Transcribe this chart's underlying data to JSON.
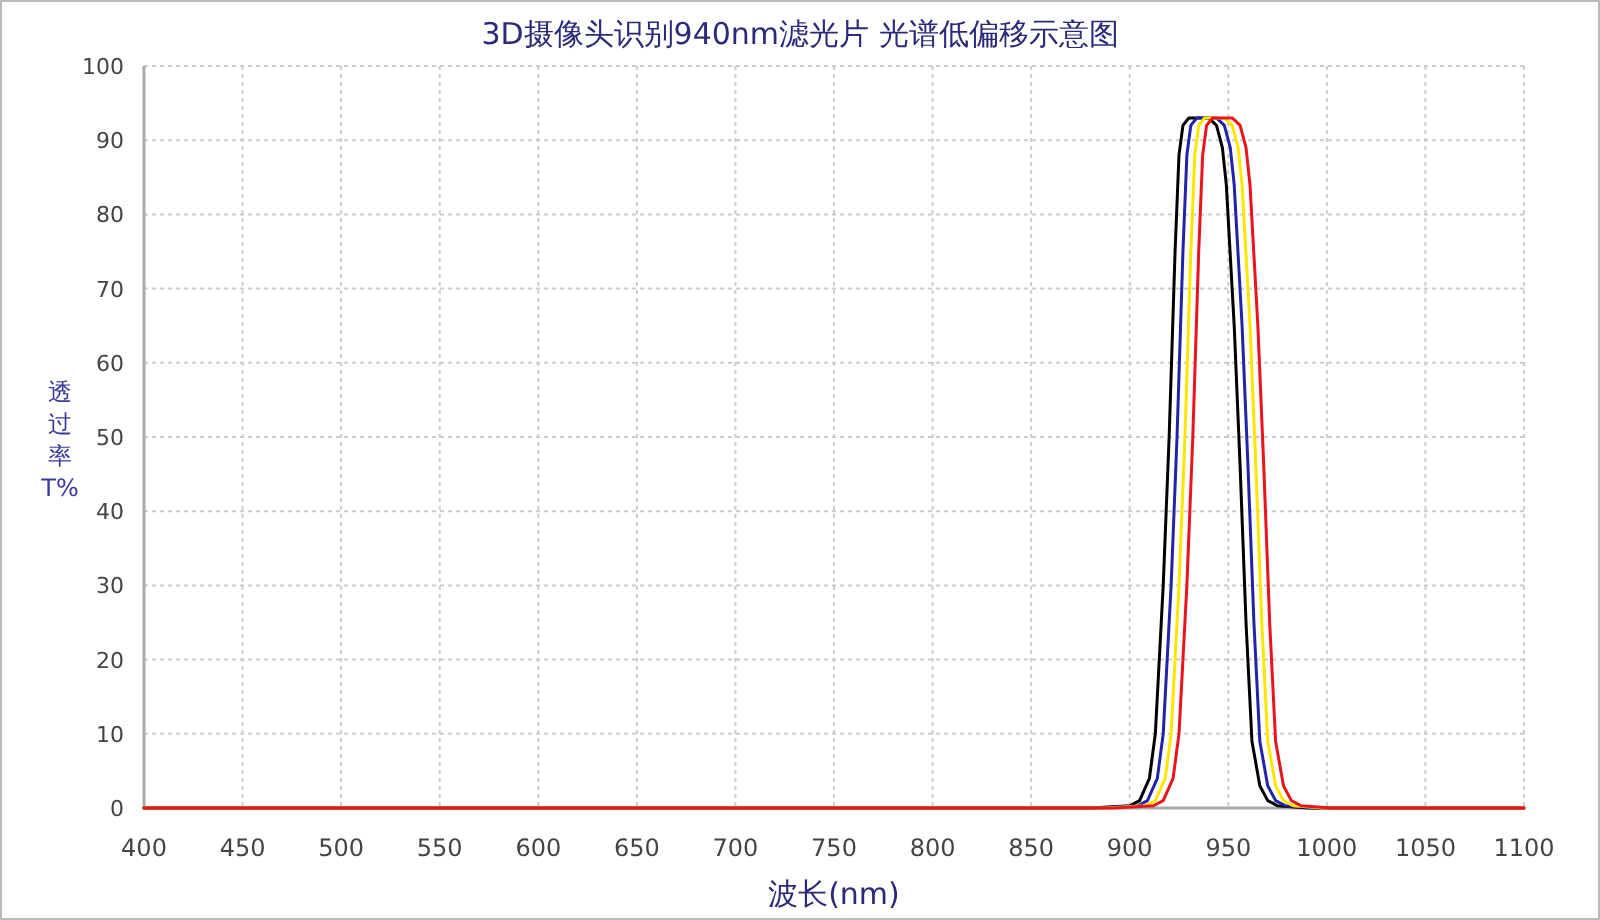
{
  "chart_data": {
    "type": "line",
    "title": "3D摄像头识别940nm滤光片 光谱低偏移示意图",
    "xlabel": "波长(nm)",
    "ylabel": "透过率T%",
    "xlim": [
      400,
      1100
    ],
    "xticks": [
      400,
      450,
      500,
      550,
      600,
      650,
      700,
      750,
      800,
      850,
      900,
      950,
      1000,
      1050,
      1100
    ],
    "ylim": [
      0,
      100
    ],
    "yticks": [
      0,
      10,
      20,
      30,
      40,
      50,
      60,
      70,
      80,
      90,
      100
    ],
    "grid": true,
    "marker": "none",
    "line_style": "solid",
    "series": [
      {
        "color": "#000000",
        "x": [
          400,
          880,
          900,
          905,
          910,
          913,
          917,
          920,
          923,
          925,
          927,
          930,
          935,
          940,
          944,
          947,
          949,
          953,
          956,
          959,
          962,
          966,
          970,
          975,
          990,
          1100
        ],
        "values": [
          0,
          0,
          0.3,
          1,
          4,
          10,
          30,
          50,
          75,
          88,
          92,
          93,
          93,
          93,
          92,
          89,
          84,
          65,
          46,
          25,
          9,
          3,
          1,
          0.3,
          0,
          0
        ]
      },
      {
        "color": "#2323a8",
        "x": [
          400,
          884,
          904,
          909,
          914,
          917,
          921,
          924,
          927,
          929,
          931,
          934,
          939,
          944,
          948,
          951,
          953,
          957,
          960,
          963,
          966,
          970,
          974,
          979,
          994,
          1100
        ],
        "values": [
          0,
          0,
          0.3,
          1,
          4,
          10,
          30,
          50,
          75,
          88,
          92,
          93,
          93,
          93,
          92,
          89,
          84,
          65,
          46,
          25,
          9,
          3,
          1,
          0.3,
          0,
          0
        ]
      },
      {
        "color": "#ffe600",
        "x": [
          400,
          888,
          908,
          913,
          918,
          921,
          925,
          928,
          931,
          933,
          935,
          938,
          943,
          948,
          952,
          955,
          957,
          961,
          964,
          967,
          970,
          974,
          978,
          983,
          998,
          1100
        ],
        "values": [
          0,
          0,
          0.3,
          1,
          4,
          10,
          30,
          50,
          75,
          88,
          92,
          93,
          93,
          93,
          92,
          89,
          84,
          65,
          46,
          25,
          9,
          3,
          1,
          0.3,
          0,
          0
        ]
      },
      {
        "color": "#e8141e",
        "x": [
          400,
          892,
          912,
          917,
          922,
          925,
          929,
          932,
          935,
          937,
          939,
          942,
          947,
          952,
          956,
          959,
          961,
          965,
          968,
          971,
          974,
          978,
          982,
          987,
          1002,
          1100
        ],
        "values": [
          0,
          0,
          0.3,
          1,
          4,
          10,
          30,
          50,
          75,
          88,
          92,
          93,
          93,
          93,
          92,
          89,
          84,
          65,
          46,
          25,
          9,
          3,
          1,
          0.3,
          0,
          0
        ]
      }
    ]
  }
}
